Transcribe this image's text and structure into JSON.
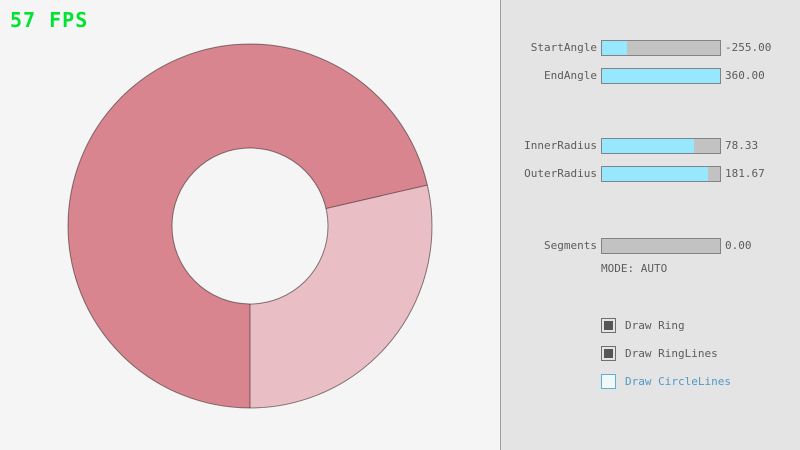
{
  "fps_label": "57 FPS",
  "colors": {
    "fps_green": "#00e431",
    "ring_dark": "#d9858f",
    "ring_light": "#e9bec5",
    "ring_outline": "rgba(0,0,0,0.45)",
    "slider_fill_cyan": "#97e8ff",
    "accent_blue": "#4f99c7"
  },
  "ring": {
    "start_angle": "-255.00",
    "end_angle": "360.00",
    "inner_radius": "78.33",
    "outer_radius": "181.67",
    "segments": "0.00"
  },
  "controls": {
    "sliders": [
      {
        "label": "StartAngle",
        "value": "-255.00",
        "fill_pct": 21
      },
      {
        "label": "EndAngle",
        "value": "360.00",
        "fill_pct": 100
      },
      {
        "label": "InnerRadius",
        "value": "78.33",
        "fill_pct": 78
      },
      {
        "label": "OuterRadius",
        "value": "181.67",
        "fill_pct": 90
      },
      {
        "label": "Segments",
        "value": "0.00",
        "fill_pct": 0
      }
    ],
    "mode_label": "MODE: AUTO",
    "checkboxes": [
      {
        "label": "Draw Ring",
        "checked": true
      },
      {
        "label": "Draw RingLines",
        "checked": true
      },
      {
        "label": "Draw CircleLines",
        "checked": false
      }
    ]
  }
}
